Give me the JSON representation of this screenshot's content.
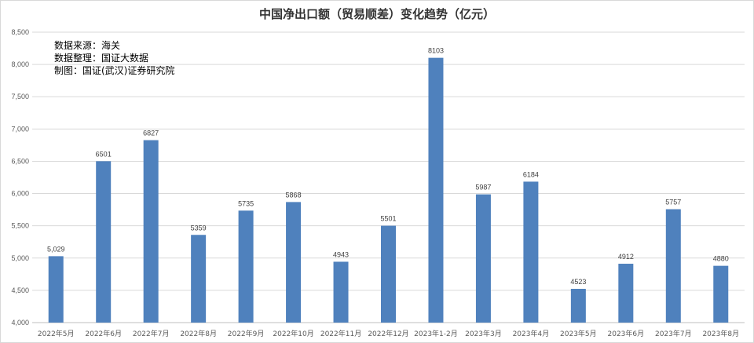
{
  "chart_data": {
    "type": "bar",
    "title": "中国净出口额（贸易顺差）变化趋势（亿元）",
    "annotations": [
      "数据来源：海关",
      "数据整理：国证大数据",
      "制图：国证(武汉)证券研究院"
    ],
    "categories": [
      "2022年5月",
      "2022年6月",
      "2022年7月",
      "2022年8月",
      "2022年9月",
      "2022年10月",
      "2022年11月",
      "2022年12月",
      "2023年1-2月",
      "2023年3月",
      "2023年4月",
      "2023年5月",
      "2023年6月",
      "2023年7月",
      "2023年8月"
    ],
    "values": [
      5029,
      6501,
      6827,
      5359,
      5735,
      5868,
      4943,
      5501,
      8103,
      5987,
      6184,
      4523,
      4912,
      5757,
      4880
    ],
    "value_labels": [
      "5,029",
      "6501",
      "6827",
      "5359",
      "5735",
      "5868",
      "4943",
      "5501",
      "8103",
      "5987",
      "6184",
      "4523",
      "4912",
      "5757",
      "4880"
    ],
    "ylim": [
      4000,
      8500
    ],
    "yticks": [
      4000,
      4500,
      5000,
      5500,
      6000,
      6500,
      7000,
      7500,
      8000,
      8500
    ],
    "ytick_labels": [
      "4,000",
      "4,500",
      "5,000",
      "5,500",
      "6,000",
      "6,500",
      "7,000",
      "7,500",
      "8,000",
      "8,500"
    ],
    "grid": true,
    "legend": "none",
    "bar_color": "#4f81bd",
    "grid_color": "#d9d9d9"
  }
}
